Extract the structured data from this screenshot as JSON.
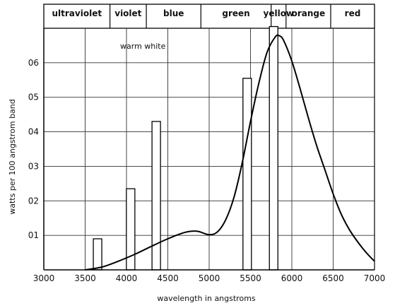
{
  "chart_data": {
    "type": "line",
    "title": "",
    "xlabel": "wavelength in angstroms",
    "ylabel": "watts per 100 angstrom band",
    "annotation": "warm white",
    "xlim": [
      3000,
      7000
    ],
    "ylim": [
      0,
      0.07
    ],
    "x_ticks": [
      3000,
      3500,
      4000,
      4500,
      5000,
      5500,
      6000,
      6500,
      7000
    ],
    "y_ticks": [
      {
        "value": 0.01,
        "label": "01"
      },
      {
        "value": 0.02,
        "label": "02"
      },
      {
        "value": 0.03,
        "label": "03"
      },
      {
        "value": 0.04,
        "label": "04"
      },
      {
        "value": 0.05,
        "label": "05"
      },
      {
        "value": 0.06,
        "label": "06"
      }
    ],
    "grid": true,
    "color_bands": [
      {
        "label": "ultraviolet",
        "from": 3000,
        "to": 3800
      },
      {
        "label": "violet",
        "from": 3800,
        "to": 4240
      },
      {
        "label": "blue",
        "from": 4240,
        "to": 4900
      },
      {
        "label": "green",
        "from": 4900,
        "to": 5750
      },
      {
        "label": "yellow",
        "from": 5750,
        "to": 5930
      },
      {
        "label": "orange",
        "from": 5930,
        "to": 6470
      },
      {
        "label": "red",
        "from": 6470,
        "to": 7000
      }
    ],
    "series": [
      {
        "x": [
          3500,
          3700,
          3900,
          4100,
          4300,
          4500,
          4700,
          4850,
          5000,
          5100,
          5200,
          5300,
          5400,
          5500,
          5600,
          5700,
          5800,
          5850,
          5900,
          6000,
          6100,
          6200,
          6300,
          6400,
          6500,
          6600,
          6700,
          6800,
          6900,
          7000
        ],
        "values": [
          0.0,
          0.0008,
          0.0025,
          0.0045,
          0.0068,
          0.009,
          0.0108,
          0.0112,
          0.0102,
          0.011,
          0.0145,
          0.021,
          0.031,
          0.043,
          0.054,
          0.063,
          0.0675,
          0.0678,
          0.0665,
          0.0605,
          0.0525,
          0.044,
          0.036,
          0.029,
          0.022,
          0.016,
          0.0115,
          0.008,
          0.005,
          0.0025
        ]
      }
    ],
    "lines": [
      {
        "x": 3650,
        "height": 0.009
      },
      {
        "x": 4050,
        "height": 0.0235
      },
      {
        "x": 4360,
        "height": 0.043
      },
      {
        "x": 5460,
        "height": 0.0555
      },
      {
        "x": 5780,
        "height": 0.0705
      }
    ]
  }
}
